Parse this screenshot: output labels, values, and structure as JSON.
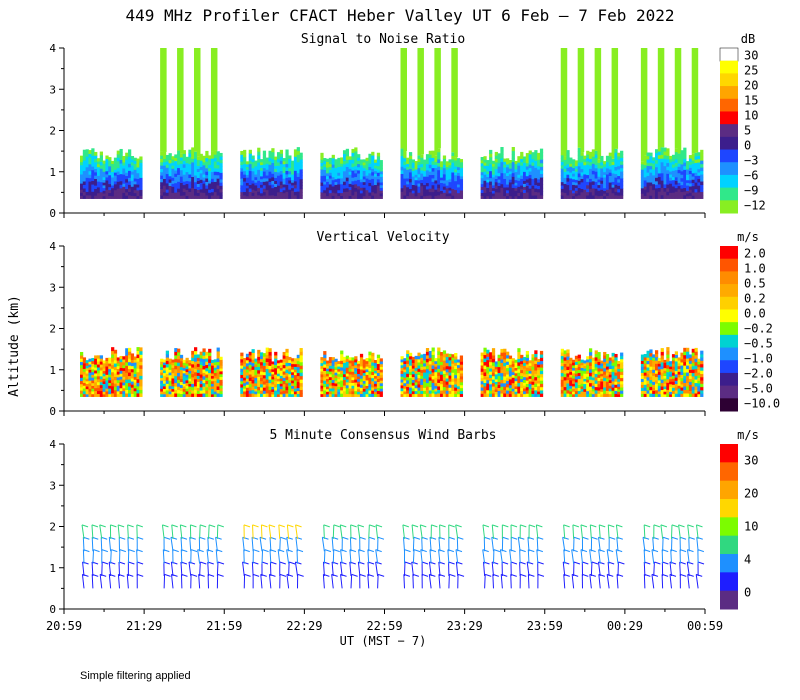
{
  "chart_data": {
    "type": "heatmap",
    "title": "449 MHz Profiler CFACT Heber Valley UT  6 Feb —  7 Feb 2022",
    "ylabel": "Altitude (km)",
    "xlabel": "UT  (MST − 7)",
    "x_tick_labels": [
      "20:59",
      "21:29",
      "21:59",
      "22:29",
      "22:59",
      "23:29",
      "23:59",
      "00:29",
      "00:59"
    ],
    "y_ticks": [
      0,
      1,
      2,
      3,
      4
    ],
    "ylim": [
      0,
      4
    ],
    "footnote": "Simple filtering applied",
    "panels": [
      {
        "id": "snr",
        "type": "heatmap",
        "title": "Signal to Noise Ratio",
        "unit": "dB",
        "colorbar_labels": [
          "30",
          "25",
          "20",
          "15",
          "10",
          "5",
          "0",
          "−3",
          "−6",
          "−9",
          "−12"
        ],
        "colors": [
          "#ffffff",
          "#ffff00",
          "#ffd700",
          "#ffa500",
          "#ff6600",
          "#ff0000",
          "#5b2c83",
          "#3c1e8c",
          "#1e46ff",
          "#1e90ff",
          "#00d2ff",
          "#30e88a",
          "#88ee22"
        ]
      },
      {
        "id": "vv",
        "type": "heatmap",
        "title": "Vertical Velocity",
        "unit": "m/s",
        "colorbar_labels": [
          "2.0",
          "1.0",
          "0.5",
          "0.2",
          "0.0",
          "−0.2",
          "−0.5",
          "−1.0",
          "−2.0",
          "−5.0",
          "−10.0"
        ],
        "colors": [
          "#ff0000",
          "#ff5500",
          "#ff8c00",
          "#ffaa00",
          "#ffd000",
          "#ffff00",
          "#7cfc00",
          "#00d2d2",
          "#1e90ff",
          "#1e46ff",
          "#3c1e8c",
          "#5b2c83",
          "#2d0033"
        ]
      },
      {
        "id": "wind",
        "type": "barbs",
        "title": "5 Minute Consensus Wind Barbs",
        "unit": "m/s",
        "colorbar_labels": [
          "30",
          "20",
          "10",
          "4",
          "0"
        ],
        "colors": [
          "#ff0000",
          "#ff6600",
          "#ffa500",
          "#ffd700",
          "#7cfc00",
          "#30d880",
          "#1e90ff",
          "#1e1eff",
          "#5b2c83"
        ]
      }
    ]
  }
}
